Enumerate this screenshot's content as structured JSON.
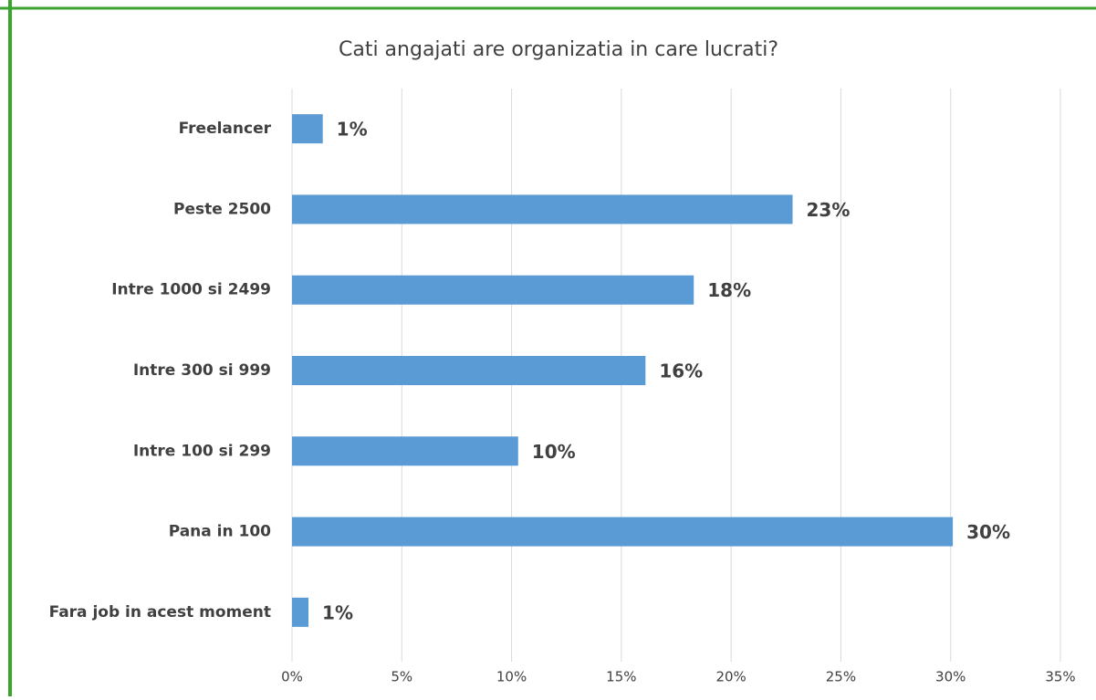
{
  "chart_data": {
    "type": "barh",
    "title": "Cati angajati are organizatia in care lucrati?",
    "categories": [
      "Freelancer",
      "Peste 2500",
      "Intre 1000 si 2499",
      "Intre 300 si 999",
      "Intre 100 si 299",
      "Pana in 100",
      "Fara job in acest moment"
    ],
    "values": [
      1.4,
      22.8,
      18.3,
      16.1,
      10.3,
      30.1,
      0.75
    ],
    "value_labels": [
      "1%",
      "23%",
      "18%",
      "16%",
      "10%",
      "30%",
      "1%"
    ],
    "color": "#5b9bd5",
    "xlim": [
      0,
      35
    ],
    "xticks": [
      {
        "value": 0,
        "label": "0%"
      },
      {
        "value": 5,
        "label": "5%"
      },
      {
        "value": 10,
        "label": "10%"
      },
      {
        "value": 15,
        "label": "15%"
      },
      {
        "value": 20,
        "label": "20%"
      },
      {
        "value": 25,
        "label": "25%"
      },
      {
        "value": 30,
        "label": "30%"
      },
      {
        "value": 35,
        "label": "35%"
      }
    ],
    "grid": true
  }
}
